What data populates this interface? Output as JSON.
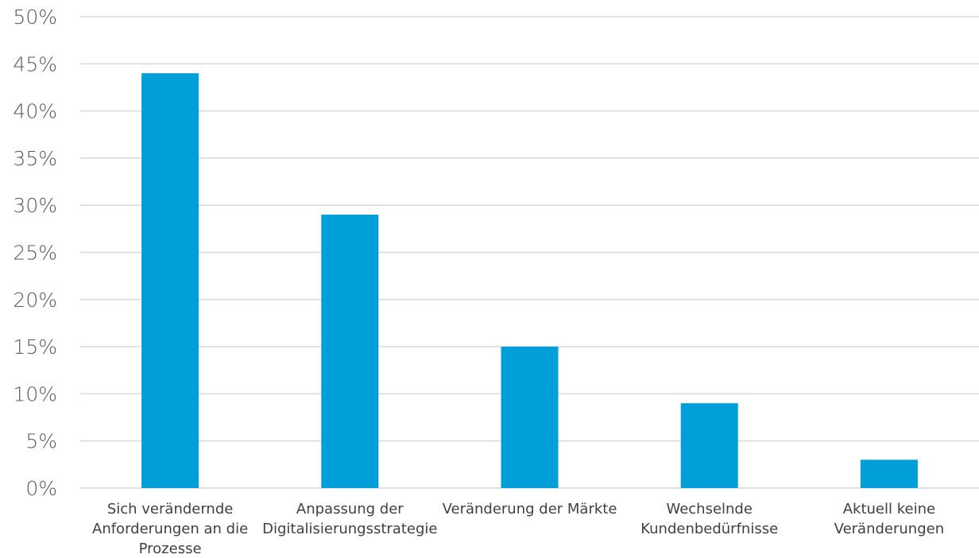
{
  "chart_data": {
    "type": "bar",
    "categories": [
      [
        "Sich verändernde",
        "Anforderungen an die",
        "Prozesse"
      ],
      [
        "Anpassung der",
        "Digitalisierungsstrategie"
      ],
      [
        "Veränderung der Märkte"
      ],
      [
        "Wechselnde",
        "Kundenbedürfnisse"
      ],
      [
        "Aktuell keine",
        "Veränderungen"
      ]
    ],
    "values": [
      44,
      29,
      15,
      9,
      3
    ],
    "title": "",
    "xlabel": "",
    "ylabel": "",
    "ylim": [
      0,
      50
    ],
    "ytick_step": 5,
    "ytick_format": "%",
    "grid": true,
    "legend": "none",
    "bar_color": "#009fda",
    "grid_color": "#d9d9d9"
  }
}
